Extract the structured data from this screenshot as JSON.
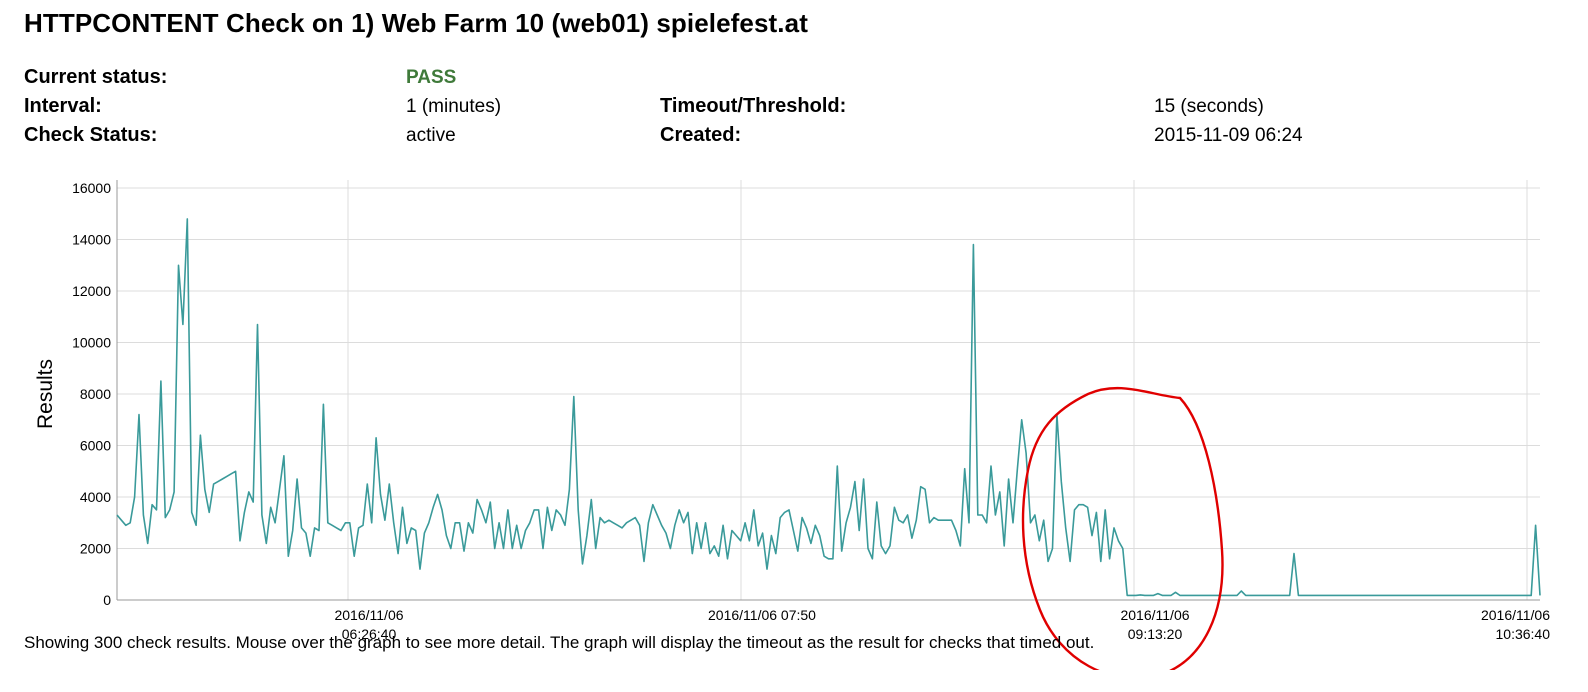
{
  "title": "HTTPCONTENT Check on 1) Web Farm 10 (web01) spielefest.at",
  "info": {
    "current_status_label": "Current status:",
    "current_status_value": "PASS",
    "interval_label": "Interval:",
    "interval_value": "1 (minutes)",
    "timeout_label": "Timeout/Threshold:",
    "timeout_value": "15 (seconds)",
    "check_status_label": "Check Status:",
    "check_status_value": "active",
    "created_label": "Created:",
    "created_value": "2015-11-09 06:24"
  },
  "colors": {
    "line": "#3a9a9a",
    "pass": "#3f7a3a",
    "annotation": "#e00000",
    "grid": "#dcdcdc"
  },
  "footer": "Showing 300 check results. Mouse over the graph to see more detail. The graph will display the timeout as the result for checks that timed out.",
  "chart_data": {
    "type": "line",
    "ylabel": "Results",
    "ylim": [
      0,
      16000
    ],
    "yticks": [
      0,
      2000,
      4000,
      6000,
      8000,
      10000,
      12000,
      14000,
      16000
    ],
    "xticks": [
      {
        "label": "2016/11/06 06:26:40",
        "line1": "2016/11/06",
        "line2": "06:26:40"
      },
      {
        "label": "2016/11/06 07:50",
        "line1": "2016/11/06 07:50",
        "line2": ""
      },
      {
        "label": "2016/11/06 09:13:20",
        "line1": "2016/11/06",
        "line2": "09:13:20"
      },
      {
        "label": "2016/11/06 10:36:40",
        "line1": "2016/11/06",
        "line2": "10:36:40"
      }
    ],
    "x_start": "2016/11/06 05:55",
    "x_end": "2016/11/06 10:37",
    "grid": true,
    "series": [
      {
        "values": [
          3300,
          3100,
          2900,
          3000,
          4000,
          7200,
          3300,
          2200,
          3700,
          3500,
          8500,
          3200,
          3500,
          4200,
          13000,
          10700,
          14800,
          3400,
          2900,
          6400,
          4300,
          3400,
          4500,
          4600,
          4700,
          4800,
          4900,
          5000,
          2300,
          3400,
          4200,
          3800,
          10700,
          3300,
          2200,
          3600,
          3000,
          4300,
          5600,
          1700,
          2700,
          4700,
          2800,
          2600,
          1700,
          2800,
          2700,
          7600,
          3000,
          2900,
          2800,
          2700,
          3000,
          3000,
          1700,
          2800,
          2900,
          4500,
          3000,
          6300,
          4100,
          3100,
          4500,
          3000,
          1800,
          3600,
          2200,
          2800,
          2700,
          1200,
          2600,
          3000,
          3600,
          4100,
          3500,
          2500,
          2000,
          3000,
          3000,
          1900,
          3000,
          2600,
          3900,
          3500,
          3000,
          3800,
          2000,
          3000,
          2000,
          3500,
          2000,
          2900,
          2000,
          2700,
          3000,
          3500,
          3500,
          2000,
          3600,
          2700,
          3500,
          3300,
          2900,
          4300,
          7900,
          3500,
          1400,
          2500,
          3900,
          2000,
          3200,
          3000,
          3100,
          3000,
          2900,
          2800,
          3000,
          3100,
          3200,
          2900,
          1500,
          3000,
          3700,
          3300,
          2900,
          2600,
          2000,
          2900,
          3500,
          3000,
          3400,
          1800,
          3000,
          2000,
          3000,
          1800,
          2100,
          1700,
          2900,
          1600,
          2700,
          2500,
          2300,
          3000,
          2300,
          3500,
          2100,
          2600,
          1200,
          2500,
          1800,
          3200,
          3400,
          3500,
          2700,
          1900,
          3200,
          2800,
          2200,
          2900,
          2500,
          1700,
          1600,
          1600,
          5200,
          1900,
          3000,
          3600,
          4600,
          2700,
          4700,
          2000,
          1600,
          3800,
          2100,
          1800,
          2100,
          3600,
          3100,
          3000,
          3300,
          2400,
          3100,
          4400,
          4300,
          3000,
          3200,
          3100,
          3100,
          3100,
          3100,
          2700,
          2100,
          5100,
          3000,
          13800,
          3300,
          3300,
          3000,
          5200,
          3300,
          4200,
          2100,
          4700,
          3000,
          5100,
          7000,
          5700,
          3000,
          3300,
          2300,
          3100,
          1500,
          2000,
          7200,
          4600,
          2800,
          1500,
          3500,
          3700,
          3700,
          3600,
          2500,
          3400,
          1500,
          3500,
          1600,
          2800,
          2300,
          2000,
          180,
          180,
          180,
          200,
          180,
          180,
          180,
          250,
          180,
          180,
          180,
          300,
          180,
          180,
          180,
          180,
          180,
          180,
          180,
          180,
          180,
          180,
          180,
          180,
          180,
          180,
          350,
          180,
          180,
          180,
          180,
          180,
          180,
          180,
          180,
          180,
          180,
          180,
          1800,
          180,
          180,
          180,
          180,
          180,
          180,
          180,
          180,
          180,
          180,
          180,
          180,
          180,
          180,
          180,
          180,
          180,
          180,
          180,
          180,
          180,
          180,
          180,
          180,
          180,
          180,
          180,
          180,
          180,
          180,
          180,
          180,
          180,
          180,
          180,
          180,
          180,
          180,
          180,
          180,
          180,
          180,
          180,
          180,
          180,
          180,
          180,
          180,
          180,
          180,
          180,
          180,
          180,
          180,
          2900,
          180
        ]
      }
    ]
  }
}
